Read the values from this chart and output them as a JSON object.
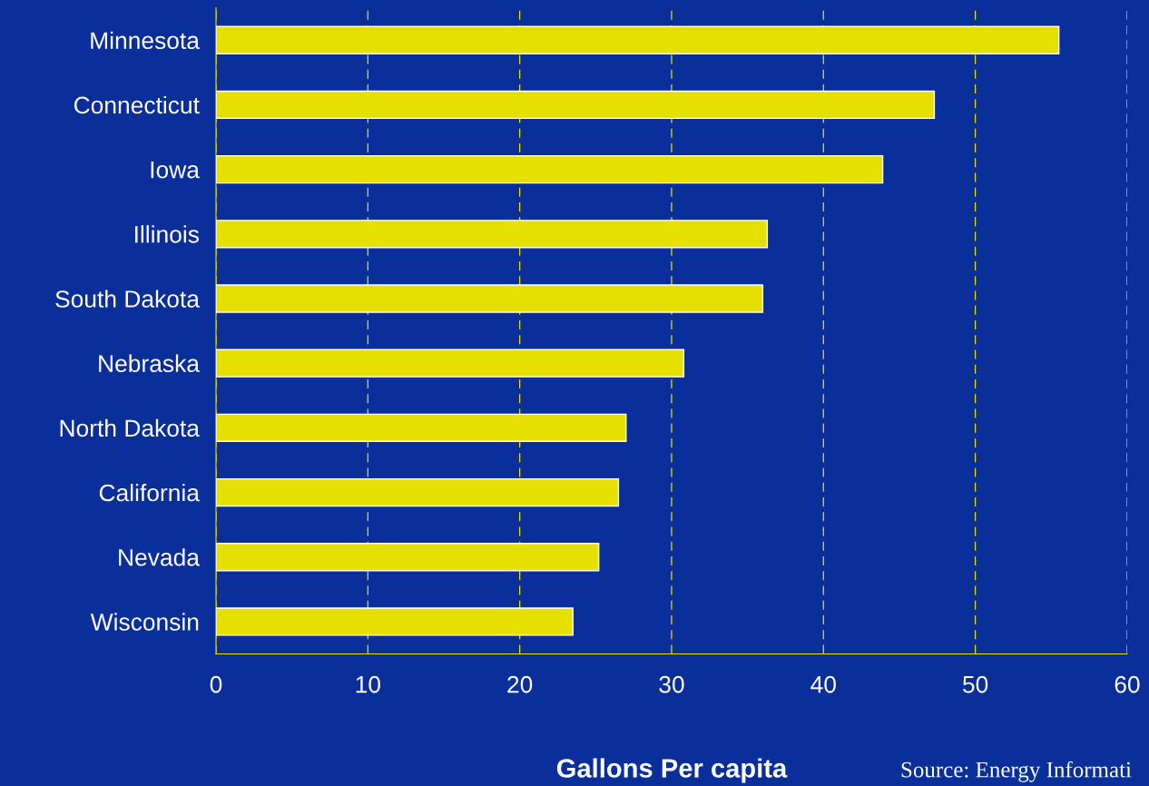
{
  "chart_data": {
    "type": "bar",
    "orientation": "horizontal",
    "xlabel": "Gallons Per capita",
    "categories": [
      "Minnesota",
      "Connecticut",
      "Iowa",
      "Illinois",
      "South Dakota",
      "Nebraska",
      "North Dakota",
      "California",
      "Nevada",
      "Wisconsin"
    ],
    "values": [
      55.5,
      47.3,
      43.9,
      36.3,
      36.0,
      30.8,
      27.0,
      26.5,
      25.2,
      23.5
    ],
    "color": "#e6e000",
    "xlim": [
      0,
      60
    ],
    "xticks": [
      0,
      10,
      20,
      30,
      40,
      50,
      60
    ],
    "grid": "x",
    "annotations": [
      "Source: Energy Informati"
    ]
  }
}
